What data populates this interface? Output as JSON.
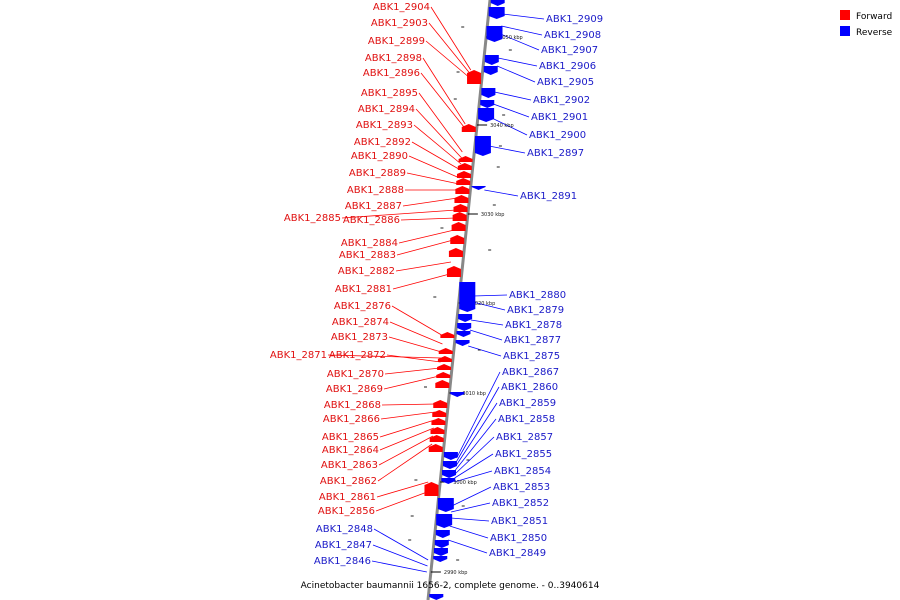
{
  "caption": "Acinetobacter baumannii 1656-2, complete genome. - 0..3940614",
  "legend": [
    {
      "name": "Forward",
      "color": "#ff0000"
    },
    {
      "name": "Reverse",
      "color": "#0000ff"
    }
  ],
  "colors": {
    "forward": "#ff0000",
    "reverse": "#0000ff",
    "forward_text": "#e01010",
    "reverse_text": "#1a1ac8",
    "backbone": "#888888"
  },
  "ticks": [
    "3050 kbp",
    "3040 kbp",
    "3030 kbp",
    "3020 kbp",
    "3010 kbp",
    "3000 kbp",
    "2990 kbp"
  ],
  "forward_genes": [
    "ABK1_2904",
    "ABK1_2903",
    "ABK1_2899",
    "ABK1_2898",
    "ABK1_2896",
    "ABK1_2895",
    "ABK1_2894",
    "ABK1_2893",
    "ABK1_2892",
    "ABK1_2890",
    "ABK1_2889",
    "ABK1_2888",
    "ABK1_2887",
    "ABK1_2885",
    "ABK1_2886",
    "ABK1_2884",
    "ABK1_2883",
    "ABK1_2882",
    "ABK1_2881",
    "ABK1_2876",
    "ABK1_2874",
    "ABK1_2873",
    "ABK1_2871",
    "ABK1_2872",
    "ABK1_2870",
    "ABK1_2869",
    "ABK1_2868",
    "ABK1_2866",
    "ABK1_2865",
    "ABK1_2864",
    "ABK1_2863",
    "ABK1_2862",
    "ABK1_2861",
    "ABK1_2856"
  ],
  "reverse_genes_right": [
    "ABK1_2909",
    "ABK1_2908",
    "ABK1_2907",
    "ABK1_2906",
    "ABK1_2905",
    "ABK1_2902",
    "ABK1_2901",
    "ABK1_2900",
    "ABK1_2897",
    "ABK1_2891",
    "ABK1_2880",
    "ABK1_2879",
    "ABK1_2878",
    "ABK1_2877",
    "ABK1_2875",
    "ABK1_2867",
    "ABK1_2860",
    "ABK1_2859",
    "ABK1_2858",
    "ABK1_2857",
    "ABK1_2855",
    "ABK1_2854",
    "ABK1_2853",
    "ABK1_2852",
    "ABK1_2851",
    "ABK1_2850",
    "ABK1_2849"
  ],
  "reverse_genes_left": [
    "ABK1_2848",
    "ABK1_2847",
    "ABK1_2846"
  ]
}
